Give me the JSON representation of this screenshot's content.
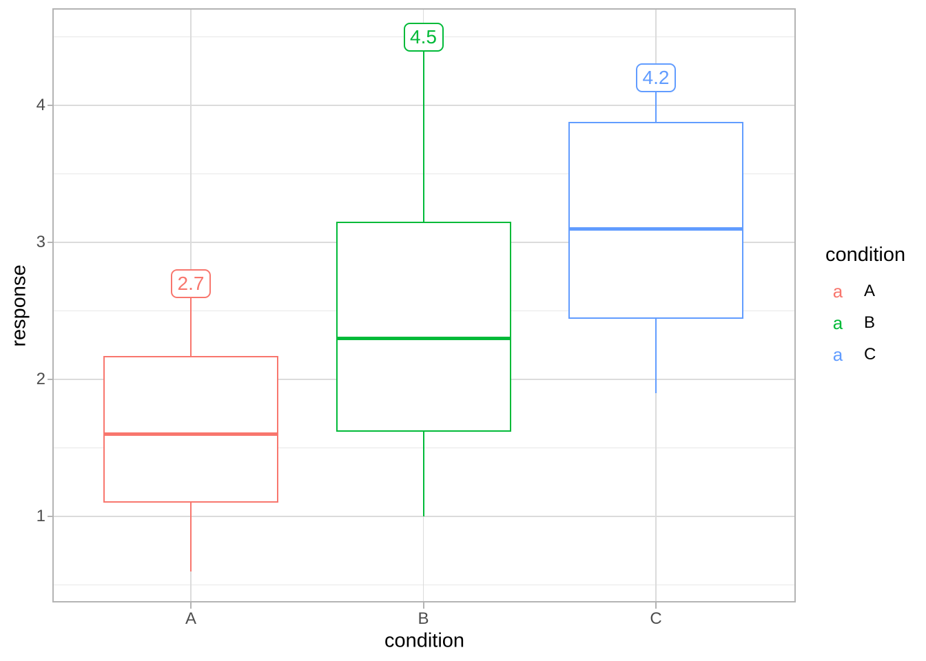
{
  "chart_data": {
    "type": "boxplot",
    "title": "",
    "xlabel": "condition",
    "ylabel": "response",
    "categories": [
      "A",
      "B",
      "C"
    ],
    "series": [
      {
        "name": "A",
        "color": "#F8766D",
        "min": 0.6,
        "q1": 1.1,
        "median": 1.6,
        "q3": 2.17,
        "max": 2.7,
        "max_label": "2.7"
      },
      {
        "name": "B",
        "color": "#00BA38",
        "min": 1.0,
        "q1": 1.62,
        "median": 2.3,
        "q3": 3.15,
        "max": 4.5,
        "max_label": "4.5"
      },
      {
        "name": "C",
        "color": "#619CFF",
        "min": 1.9,
        "q1": 2.44,
        "median": 3.1,
        "q3": 3.88,
        "max": 4.2,
        "max_label": "4.2"
      }
    ],
    "y_axis": {
      "ticks": [
        {
          "value": 4,
          "label": "4"
        },
        {
          "value": 3,
          "label": "3"
        },
        {
          "value": 2,
          "label": "2"
        },
        {
          "value": 1,
          "label": "1"
        }
      ],
      "minor_ticks": [
        4.5,
        3.5,
        2.5,
        1.5,
        0.5
      ],
      "ylim": [
        0.4,
        4.7
      ]
    },
    "grid": "major and minor horizontal, major vertical at categories",
    "legend": {
      "title": "condition",
      "position": "right",
      "key_glyph": "a",
      "entries": [
        {
          "key": "a",
          "label": "A"
        },
        {
          "key": "a",
          "label": "B"
        },
        {
          "key": "a",
          "label": "C"
        }
      ]
    }
  }
}
